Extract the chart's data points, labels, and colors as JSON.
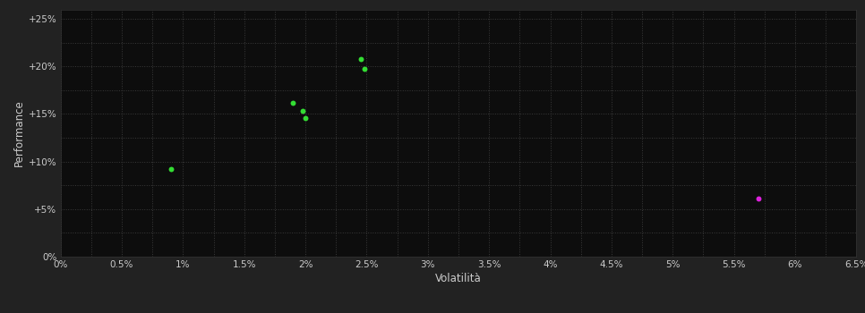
{
  "background_color": "#1a1a1a",
  "plot_bg_color": "#0d0d0d",
  "outer_bg_color": "#222222",
  "grid_color": "#3a3a3a",
  "grid_style": ":",
  "grid_linewidth": 0.7,
  "xlabel": "Volatilità",
  "ylabel": "Performance",
  "xlabel_fontsize": 8.5,
  "ylabel_fontsize": 8.5,
  "xlabel_color": "#cccccc",
  "ylabel_color": "#cccccc",
  "tick_color": "#cccccc",
  "tick_fontsize": 7.5,
  "xlim": [
    0.0,
    0.065
  ],
  "ylim": [
    0.0,
    0.26
  ],
  "xticks": [
    0.0,
    0.005,
    0.01,
    0.015,
    0.02,
    0.025,
    0.03,
    0.035,
    0.04,
    0.045,
    0.05,
    0.055,
    0.06,
    0.065
  ],
  "yticks": [
    0.0,
    0.05,
    0.1,
    0.15,
    0.2,
    0.25
  ],
  "xtick_labels": [
    "0%",
    "0.5%",
    "1%",
    "1.5%",
    "2%",
    "2.5%",
    "3%",
    "3.5%",
    "4%",
    "4.5%",
    "5%",
    "5.5%",
    "6%",
    "6.5%"
  ],
  "ytick_labels": [
    "0%",
    "+5%",
    "+10%",
    "+15%",
    "+20%",
    "+25%"
  ],
  "minor_xticks": [
    0.0025,
    0.0075,
    0.0125,
    0.0175,
    0.0225,
    0.0275,
    0.0325,
    0.0375,
    0.0425,
    0.0475,
    0.0525,
    0.0575,
    0.0625
  ],
  "minor_yticks": [
    0.025,
    0.075,
    0.125,
    0.175,
    0.225
  ],
  "green_dots": [
    [
      0.009,
      0.092
    ],
    [
      0.019,
      0.162
    ],
    [
      0.0198,
      0.153
    ],
    [
      0.02,
      0.146
    ],
    [
      0.0245,
      0.208
    ],
    [
      0.0248,
      0.197
    ]
  ],
  "magenta_dots": [
    [
      0.057,
      0.061
    ]
  ],
  "dot_color_green": "#33dd33",
  "dot_color_magenta": "#dd22dd",
  "dot_size": 18,
  "figsize": [
    9.66,
    3.5
  ],
  "dpi": 100
}
